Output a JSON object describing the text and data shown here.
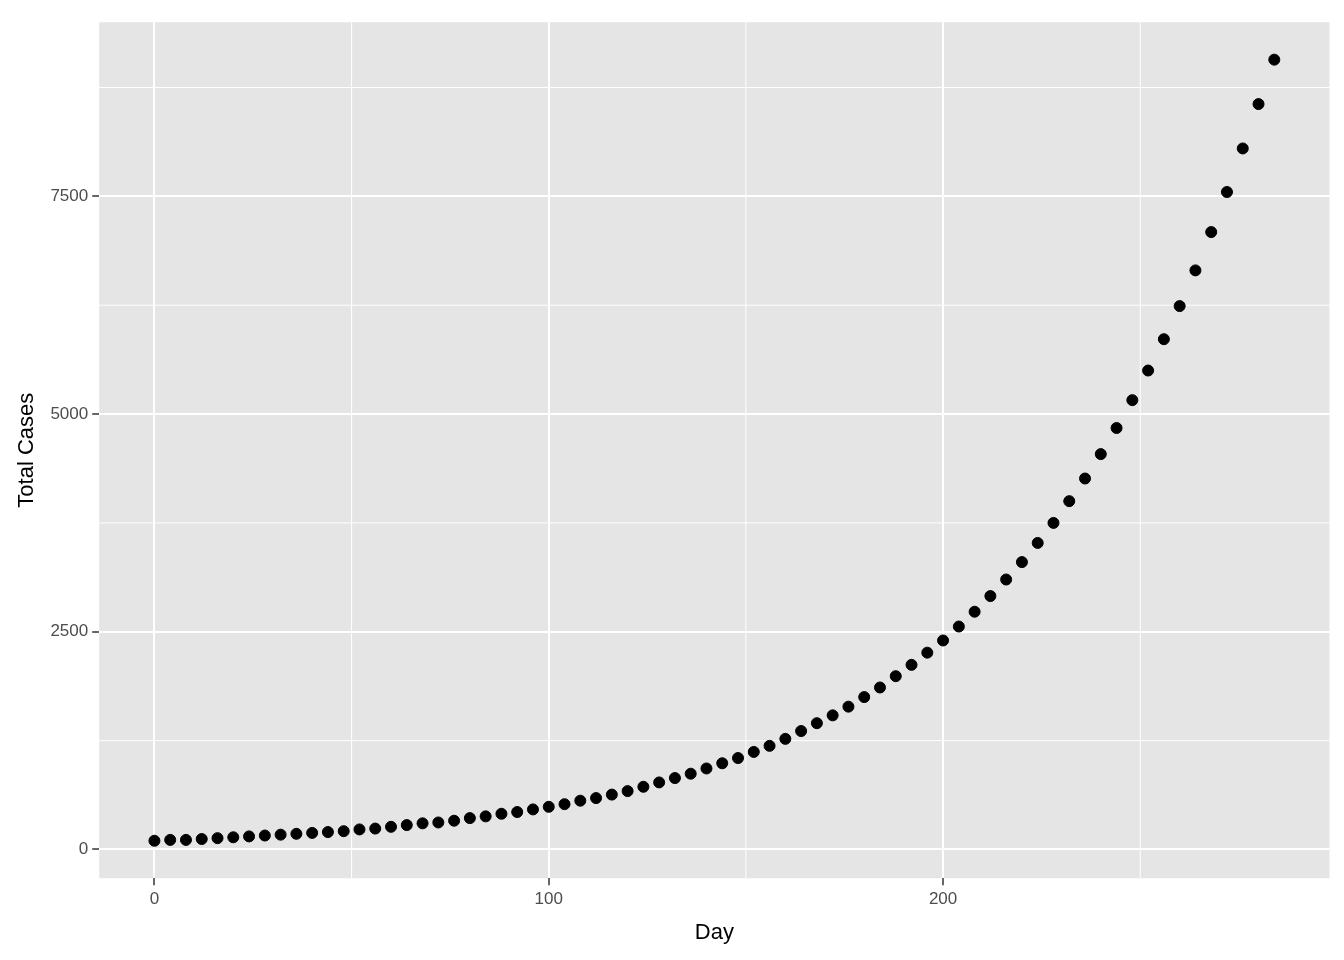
{
  "chart_data": {
    "type": "scatter",
    "xlabel": "Day",
    "ylabel": "Total Cases",
    "xlim": [
      -14,
      298
    ],
    "ylim": [
      -330,
      9500
    ],
    "xticks": [
      0,
      100,
      200
    ],
    "yticks": [
      0,
      2500,
      5000,
      7500
    ],
    "grid": true,
    "legend": false,
    "marker": "circle",
    "series": [
      {
        "color": "#000000",
        "x": [
          0,
          4,
          8,
          12,
          16,
          20,
          24,
          28,
          32,
          36,
          40,
          44,
          48,
          52,
          56,
          60,
          64,
          68,
          72,
          76,
          80,
          84,
          88,
          92,
          96,
          100,
          104,
          108,
          112,
          116,
          120,
          124,
          128,
          132,
          136,
          140,
          144,
          148,
          152,
          156,
          160,
          164,
          168,
          172,
          176,
          180,
          184,
          188,
          192,
          196,
          200,
          204,
          208,
          212,
          216,
          220,
          224,
          228,
          232,
          236,
          240,
          244,
          248,
          252,
          256,
          260,
          264,
          268,
          272,
          276,
          280,
          284
        ],
        "values": [
          100,
          110,
          110,
          120,
          130,
          140,
          150,
          160,
          170,
          180,
          190,
          200,
          210,
          230,
          240,
          260,
          280,
          300,
          310,
          330,
          360,
          380,
          410,
          430,
          460,
          490,
          520,
          560,
          590,
          630,
          670,
          720,
          770,
          820,
          870,
          930,
          990,
          1050,
          1120,
          1190,
          1270,
          1360,
          1450,
          1540,
          1640,
          1750,
          1860,
          1990,
          2120,
          2260,
          2400,
          2560,
          2730,
          2910,
          3100,
          3300,
          3520,
          3750,
          4000,
          4260,
          4540,
          4840,
          5160,
          5500,
          5860,
          6240,
          6650,
          7090,
          7550,
          8050,
          8560,
          9070
        ]
      }
    ]
  }
}
